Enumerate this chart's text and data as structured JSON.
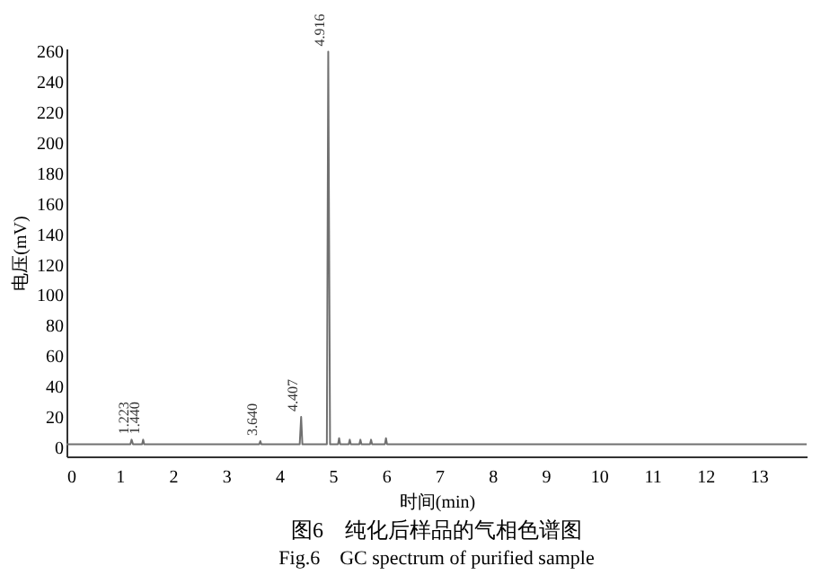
{
  "chart_data": {
    "type": "line",
    "title": "图6　纯化后样品的气相色谱图",
    "subtitle": "Fig.6　GC spectrum of purified sample",
    "xlabel": "时间(min)",
    "ylabel": "电压(mV)",
    "xlim": [
      0,
      13.9
    ],
    "xticks": [
      0,
      1,
      2,
      3,
      4,
      5,
      6,
      7,
      8,
      9,
      10,
      11,
      12,
      13
    ],
    "ylim": [
      -6,
      262
    ],
    "yticks": [
      0,
      20,
      40,
      60,
      80,
      100,
      120,
      140,
      160,
      180,
      200,
      220,
      240,
      260
    ],
    "grid": false,
    "line_style": "solid",
    "marker": "none",
    "series": [
      {
        "color": "#707070",
        "x": [
          0,
          1.2,
          1.223,
          1.25,
          1.42,
          1.44,
          1.46,
          3.62,
          3.64,
          3.66,
          4.38,
          4.407,
          4.43,
          4.89,
          4.916,
          4.95,
          5.1,
          5.12,
          5.14,
          5.3,
          5.32,
          5.34,
          5.5,
          5.52,
          5.54,
          5.7,
          5.72,
          5.74,
          5.98,
          6.0,
          6.02,
          13.9
        ],
        "values": [
          2,
          2,
          5,
          2,
          2,
          5,
          2,
          2,
          4,
          2,
          2,
          20,
          2,
          2,
          260,
          2,
          2,
          6,
          2,
          2,
          5,
          2,
          2,
          5,
          2,
          2,
          5,
          2,
          2,
          6,
          2,
          2
        ]
      }
    ],
    "annotations": [
      {
        "text": "1.223",
        "x": 1.223,
        "y": 5
      },
      {
        "text": "1.440",
        "x": 1.44,
        "y": 5
      },
      {
        "text": "3.640",
        "x": 3.64,
        "y": 4
      },
      {
        "text": "4.407",
        "x": 4.407,
        "y": 20
      },
      {
        "text": "4.916",
        "x": 4.916,
        "y": 260
      }
    ]
  }
}
